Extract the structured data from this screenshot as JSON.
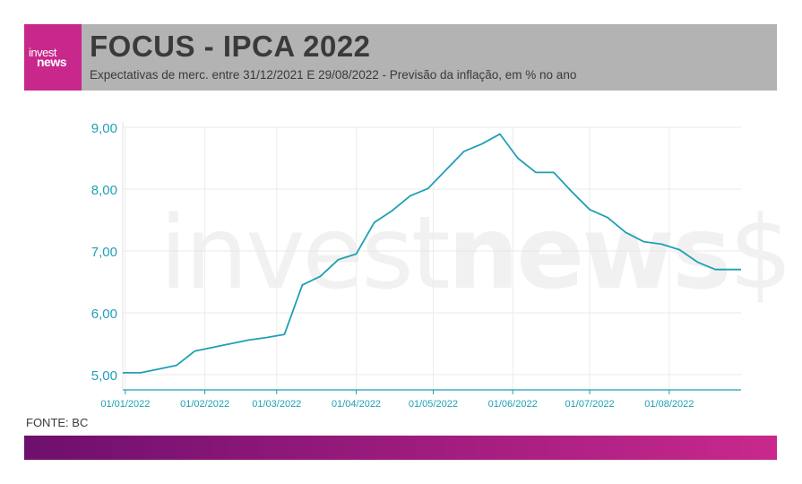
{
  "header": {
    "logo_top": "invest",
    "logo_bottom": "news",
    "title": "FOCUS - IPCA 2022",
    "subtitle": "Expectativas de merc. entre 31/12/2021 E 29/08/2022 - Previsão da inflação, em % no ano"
  },
  "watermark": {
    "part1": "invest",
    "part2": "news",
    "part3": "$"
  },
  "source": "FONTE: BC",
  "colors": {
    "line": "#1fa0b4",
    "brand": "#c8288c",
    "header_bg": "#b3b3b3",
    "footer_start": "#6e0f6e",
    "footer_end": "#c9288c"
  },
  "chart_data": {
    "type": "line",
    "title": "FOCUS - IPCA 2022",
    "subtitle": "Expectativas de merc. entre 31/12/2021 E 29/08/2022 - Previsão da inflação, em % no ano",
    "xlabel": "",
    "ylabel": "",
    "ylim": [
      5.0,
      9.0
    ],
    "xlim": [
      "2021-12-31",
      "2022-08-29"
    ],
    "grid": true,
    "y_ticks": [
      "5,00",
      "6,00",
      "7,00",
      "8,00",
      "9,00"
    ],
    "y_tick_values": [
      5,
      6,
      7,
      8,
      9
    ],
    "x_ticks": [
      "01/01/2022",
      "01/02/2022",
      "01/03/2022",
      "01/04/2022",
      "01/05/2022",
      "01/06/2022",
      "01/07/2022",
      "01/08/2022"
    ],
    "x_tick_dates": [
      "2022-01-01",
      "2022-02-01",
      "2022-03-01",
      "2022-04-01",
      "2022-05-01",
      "2022-06-01",
      "2022-07-01",
      "2022-08-01"
    ],
    "series": [
      {
        "x": [
          "2021-12-31",
          "2022-01-07",
          "2022-01-14",
          "2022-01-21",
          "2022-01-28",
          "2022-02-04",
          "2022-02-11",
          "2022-02-18",
          "2022-02-25",
          "2022-03-04",
          "2022-03-11",
          "2022-03-18",
          "2022-03-25",
          "2022-04-01",
          "2022-04-08",
          "2022-04-15",
          "2022-04-22",
          "2022-04-29",
          "2022-05-06",
          "2022-05-13",
          "2022-05-20",
          "2022-05-27",
          "2022-06-03",
          "2022-06-10",
          "2022-06-17",
          "2022-06-24",
          "2022-07-01",
          "2022-07-08",
          "2022-07-15",
          "2022-07-22",
          "2022-07-29",
          "2022-08-05",
          "2022-08-12",
          "2022-08-19",
          "2022-08-29"
        ],
        "values": [
          5.03,
          5.03,
          5.09,
          5.15,
          5.38,
          5.44,
          5.5,
          5.56,
          5.6,
          5.65,
          6.45,
          6.59,
          6.86,
          6.95,
          7.46,
          7.65,
          7.89,
          8.01,
          8.31,
          8.61,
          8.73,
          8.89,
          8.5,
          8.27,
          8.27,
          7.96,
          7.67,
          7.54,
          7.3,
          7.15,
          7.11,
          7.02,
          6.82,
          6.7,
          6.7
        ]
      }
    ]
  }
}
